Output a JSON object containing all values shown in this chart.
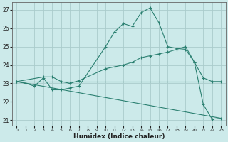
{
  "title": "",
  "xlabel": "Humidex (Indice chaleur)",
  "background_color": "#cceaea",
  "grid_color": "#aacccc",
  "line_color": "#2a7f70",
  "xlim": [
    -0.5,
    23.5
  ],
  "ylim": [
    20.7,
    27.4
  ],
  "yticks": [
    21,
    22,
    23,
    24,
    25,
    26,
    27
  ],
  "xticks": [
    0,
    1,
    2,
    3,
    4,
    5,
    6,
    7,
    8,
    9,
    10,
    11,
    12,
    13,
    14,
    15,
    16,
    17,
    18,
    19,
    20,
    21,
    22,
    23
  ],
  "line1_x": [
    0,
    1,
    2,
    3,
    4,
    5,
    6,
    7,
    10,
    11,
    12,
    13,
    14,
    15,
    16,
    17,
    18,
    19,
    20,
    21,
    22,
    23
  ],
  "line1_y": [
    23.1,
    23.0,
    22.85,
    23.3,
    22.65,
    22.65,
    22.75,
    22.85,
    25.0,
    25.8,
    26.25,
    26.1,
    26.85,
    27.1,
    26.3,
    25.0,
    24.9,
    24.85,
    24.15,
    21.85,
    21.05,
    21.1
  ],
  "line2_x": [
    0,
    3,
    4,
    5,
    6,
    7,
    10,
    11,
    12,
    13,
    14,
    15,
    16,
    17,
    18,
    19,
    20,
    21,
    22,
    23
  ],
  "line2_y": [
    23.1,
    23.35,
    23.35,
    23.1,
    23.0,
    23.15,
    23.8,
    23.9,
    24.0,
    24.15,
    24.4,
    24.5,
    24.6,
    24.7,
    24.85,
    25.0,
    24.15,
    23.3,
    23.1,
    23.1
  ],
  "line3_x": [
    0,
    23
  ],
  "line3_y": [
    23.1,
    23.1
  ],
  "line4_x": [
    0,
    23
  ],
  "line4_y": [
    23.1,
    21.1
  ]
}
